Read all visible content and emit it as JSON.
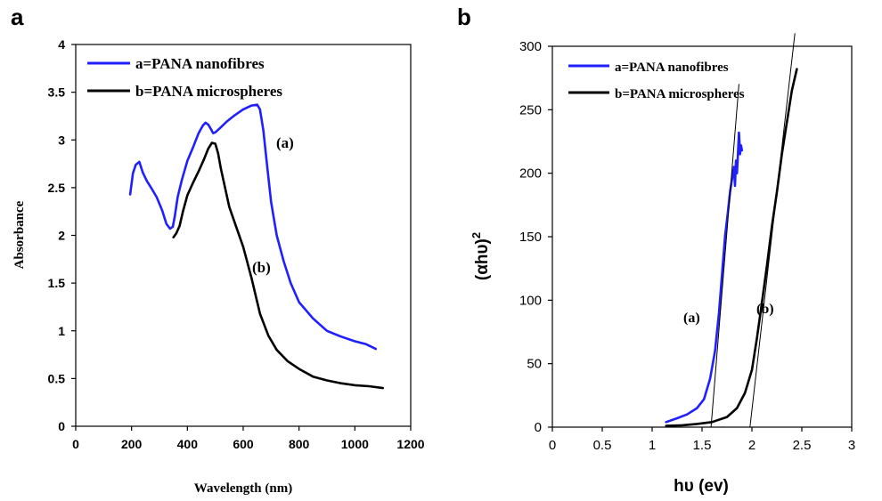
{
  "chart_data": [
    {
      "panel": "a",
      "type": "line",
      "xlabel": "Wavelength (nm)",
      "ylabel": "Absorbance",
      "xlim": [
        0,
        1200
      ],
      "ylim": [
        0,
        4
      ],
      "xticks": [
        "0",
        "200",
        "400",
        "600",
        "800",
        "1000",
        "1200"
      ],
      "yticks": [
        "0",
        "0.5",
        "1",
        "1.5",
        "2",
        "2.5",
        "3",
        "3.5",
        "4"
      ],
      "legend_position": "top-left",
      "grid": false,
      "series": [
        {
          "name": "a=PANA nanofibres",
          "color": "#1f1fff",
          "x": [
            195,
            205,
            215,
            228,
            240,
            255,
            270,
            290,
            310,
            325,
            338,
            348,
            355,
            365,
            380,
            400,
            420,
            440,
            455,
            465,
            475,
            485,
            492,
            500,
            515,
            540,
            570,
            600,
            630,
            650,
            660,
            672,
            685,
            700,
            720,
            745,
            770,
            800,
            850,
            900,
            950,
            1000,
            1040,
            1075
          ],
          "y": [
            2.43,
            2.65,
            2.74,
            2.77,
            2.66,
            2.57,
            2.5,
            2.4,
            2.26,
            2.12,
            2.07,
            2.09,
            2.2,
            2.4,
            2.58,
            2.78,
            2.92,
            3.07,
            3.15,
            3.18,
            3.16,
            3.11,
            3.07,
            3.08,
            3.12,
            3.19,
            3.26,
            3.32,
            3.36,
            3.37,
            3.32,
            3.1,
            2.75,
            2.35,
            2.0,
            1.73,
            1.5,
            1.3,
            1.13,
            1.0,
            0.94,
            0.89,
            0.86,
            0.81
          ]
        },
        {
          "name": "b=PANA microspheres",
          "color": "#000000",
          "x": [
            350,
            360,
            372,
            385,
            400,
            420,
            440,
            460,
            475,
            488,
            500,
            510,
            520,
            535,
            550,
            570,
            600,
            630,
            660,
            690,
            720,
            760,
            800,
            850,
            900,
            950,
            1000,
            1050,
            1100
          ],
          "y": [
            1.98,
            2.02,
            2.1,
            2.26,
            2.42,
            2.55,
            2.67,
            2.8,
            2.91,
            2.97,
            2.96,
            2.86,
            2.7,
            2.5,
            2.3,
            2.13,
            1.88,
            1.55,
            1.18,
            0.95,
            0.8,
            0.68,
            0.6,
            0.52,
            0.48,
            0.45,
            0.43,
            0.42,
            0.4
          ]
        }
      ],
      "annotations": [
        "(a)",
        "(b)"
      ]
    },
    {
      "panel": "b",
      "type": "line",
      "xlabel": "hυ (ev)",
      "ylabel": "(αhυ)²",
      "xlim": [
        0,
        3
      ],
      "ylim": [
        0,
        300
      ],
      "xticks": [
        "0",
        "0.5",
        "1",
        "1.5",
        "2",
        "2.5",
        "3"
      ],
      "yticks": [
        "0",
        "50",
        "100",
        "150",
        "200",
        "250",
        "300"
      ],
      "legend_position": "top-left",
      "grid": false,
      "series": [
        {
          "name": "a=PANA nanofibres",
          "color": "#1f1fff",
          "x": [
            1.14,
            1.25,
            1.35,
            1.45,
            1.52,
            1.58,
            1.63,
            1.67,
            1.7,
            1.73,
            1.76,
            1.78,
            1.8,
            1.82,
            1.83,
            1.84,
            1.85,
            1.86,
            1.87,
            1.875,
            1.88,
            1.89,
            1.9
          ],
          "y": [
            4,
            7,
            10,
            15,
            22,
            38,
            60,
            90,
            120,
            150,
            170,
            185,
            195,
            205,
            190,
            210,
            200,
            215,
            232,
            225,
            215,
            222,
            218
          ]
        },
        {
          "name": "b=PANA microspheres",
          "color": "#000000",
          "x": [
            1.14,
            1.3,
            1.45,
            1.6,
            1.75,
            1.85,
            1.93,
            2.0,
            2.05,
            2.1,
            2.15,
            2.2,
            2.25,
            2.3,
            2.35,
            2.4,
            2.45
          ],
          "y": [
            1,
            1.5,
            2.5,
            4,
            8,
            15,
            27,
            45,
            70,
            98,
            127,
            158,
            185,
            215,
            240,
            265,
            282
          ]
        },
        {
          "name": "",
          "color": "#000000",
          "x": [
            1.59,
            1.87
          ],
          "y": [
            0,
            270
          ]
        },
        {
          "name": "",
          "color": "#000000",
          "x": [
            1.98,
            2.43
          ],
          "y": [
            0,
            310
          ]
        }
      ],
      "annotations": [
        "(a)",
        "(b)"
      ]
    }
  ],
  "panel_a": {
    "letter": "a",
    "xlabel": "Wavelength (nm)",
    "ylabel": "Absorbance",
    "legend": [
      "a=PANA nanofibres",
      "b=PANA microspheres"
    ],
    "annotations": [
      "(a)",
      "(b)"
    ]
  },
  "panel_b": {
    "letter": "b",
    "xlabel": "hυ (ev)",
    "ylabel_main": "(αhυ)",
    "ylabel_sup": "2",
    "legend": [
      "a=PANA nanofibres",
      "b=PANA microspheres"
    ],
    "annotations": [
      "(a)",
      "(b)"
    ]
  }
}
